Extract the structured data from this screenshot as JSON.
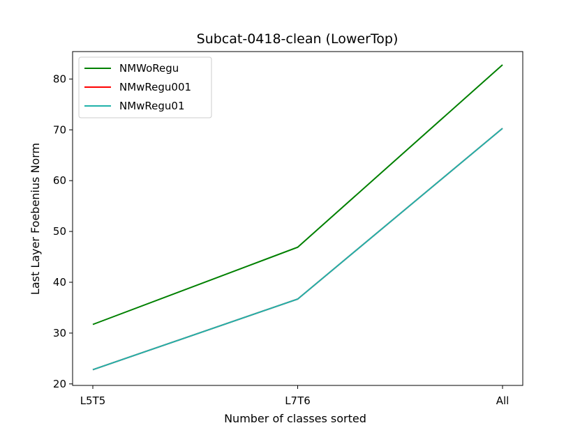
{
  "chart_data": {
    "type": "line",
    "title": "Subcat-0418-clean (LowerTop)",
    "xlabel": "Number of classes sorted",
    "ylabel": "Last Layer Foebenius Norm",
    "categories": [
      "L5T5",
      "L7T6",
      "All"
    ],
    "yticks": [
      20,
      30,
      40,
      50,
      60,
      70,
      80
    ],
    "ylim": [
      19.7,
      85.4
    ],
    "grid": false,
    "legend_position": "top-left",
    "series": [
      {
        "name": "NMWoRegu",
        "color": "#008000",
        "values": [
          31.7,
          46.9,
          82.8
        ]
      },
      {
        "name": "NMwRegu001",
        "color": "#ff0000",
        "values": [
          22.8,
          36.7,
          70.3
        ]
      },
      {
        "name": "NMwRegu01",
        "color": "#20b2aa",
        "values": [
          22.8,
          36.7,
          70.3
        ]
      }
    ]
  }
}
